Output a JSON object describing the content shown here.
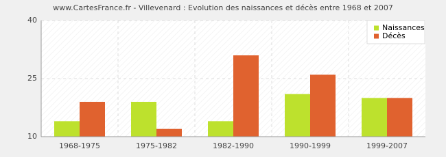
{
  "chart_data": {
    "type": "bar",
    "title": "www.CartesFrance.fr - Villevenard : Evolution des naissances et décès entre 1968 et 2007",
    "categories": [
      "1968-1975",
      "1975-1982",
      "1982-1990",
      "1990-1999",
      "1999-2007"
    ],
    "series": [
      {
        "name": "Naissances",
        "color": "#bde12d",
        "values": [
          14,
          19,
          14,
          21,
          20
        ]
      },
      {
        "name": "Décès",
        "color": "#e0622f",
        "values": [
          19,
          12,
          31,
          26,
          20
        ]
      }
    ],
    "ylim": [
      10,
      40
    ],
    "yticks": [
      10,
      25,
      40
    ],
    "grid": true,
    "legend": "top-right"
  }
}
